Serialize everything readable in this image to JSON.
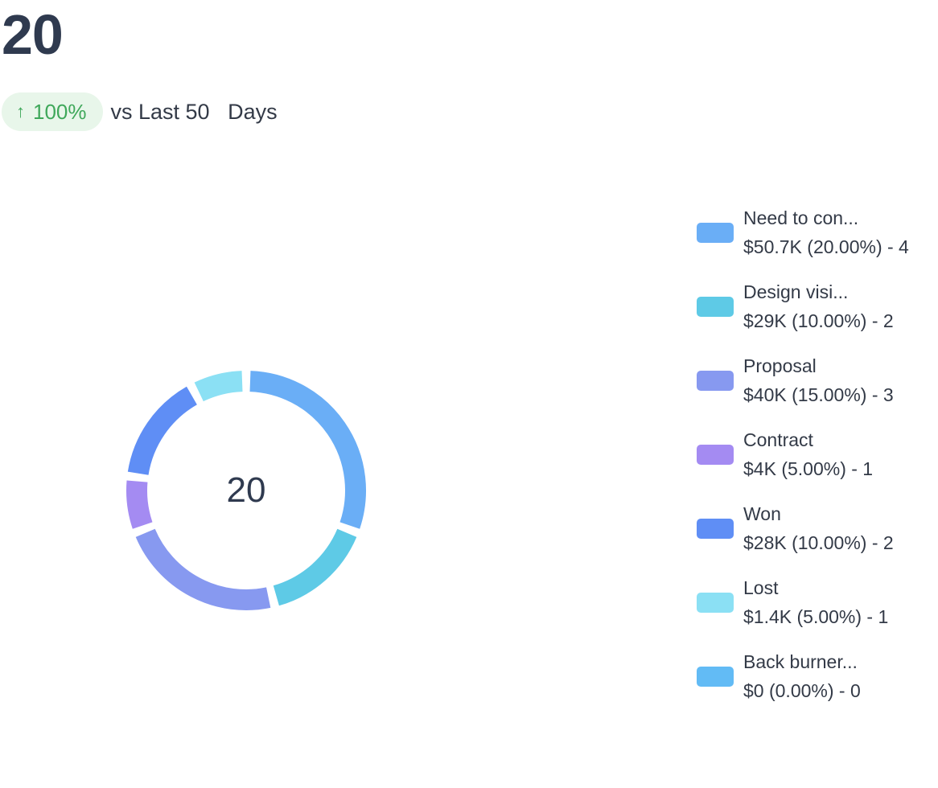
{
  "header": {
    "total": "20",
    "trend": {
      "arrow_icon": "arrow-up-icon",
      "percent": "100%",
      "comparison_text": "vs Last 50   Days"
    }
  },
  "colors": {
    "badge_bg": "#e8f6ea",
    "badge_text": "#3fa85a"
  },
  "chart_data": {
    "type": "pie",
    "variant": "donut",
    "center_label": "20",
    "legend_position": "right",
    "series": [
      {
        "name": "Need to con...",
        "detail": "$50.7K (20.00%) - 4",
        "value": 4,
        "percent": 20.0,
        "color": "#6aaef6"
      },
      {
        "name": "Design visi...",
        "detail": "$29K (10.00%) - 2",
        "value": 2,
        "percent": 10.0,
        "color": "#5ecae6"
      },
      {
        "name": "Proposal",
        "detail": "$40K (15.00%) - 3",
        "value": 3,
        "percent": 15.0,
        "color": "#8799f0"
      },
      {
        "name": "Contract",
        "detail": "$4K (5.00%) - 1",
        "value": 1,
        "percent": 5.0,
        "color": "#a48bf2"
      },
      {
        "name": "Won",
        "detail": "$28K (10.00%) - 2",
        "value": 2,
        "percent": 10.0,
        "color": "#5f8ef5"
      },
      {
        "name": "Lost",
        "detail": "$1.4K (5.00%) - 1",
        "value": 1,
        "percent": 5.0,
        "color": "#8be0f4"
      },
      {
        "name": "Back burner...",
        "detail": "$0 (0.00%) - 0",
        "value": 0,
        "percent": 0.0,
        "color": "#62bbf5"
      }
    ]
  }
}
